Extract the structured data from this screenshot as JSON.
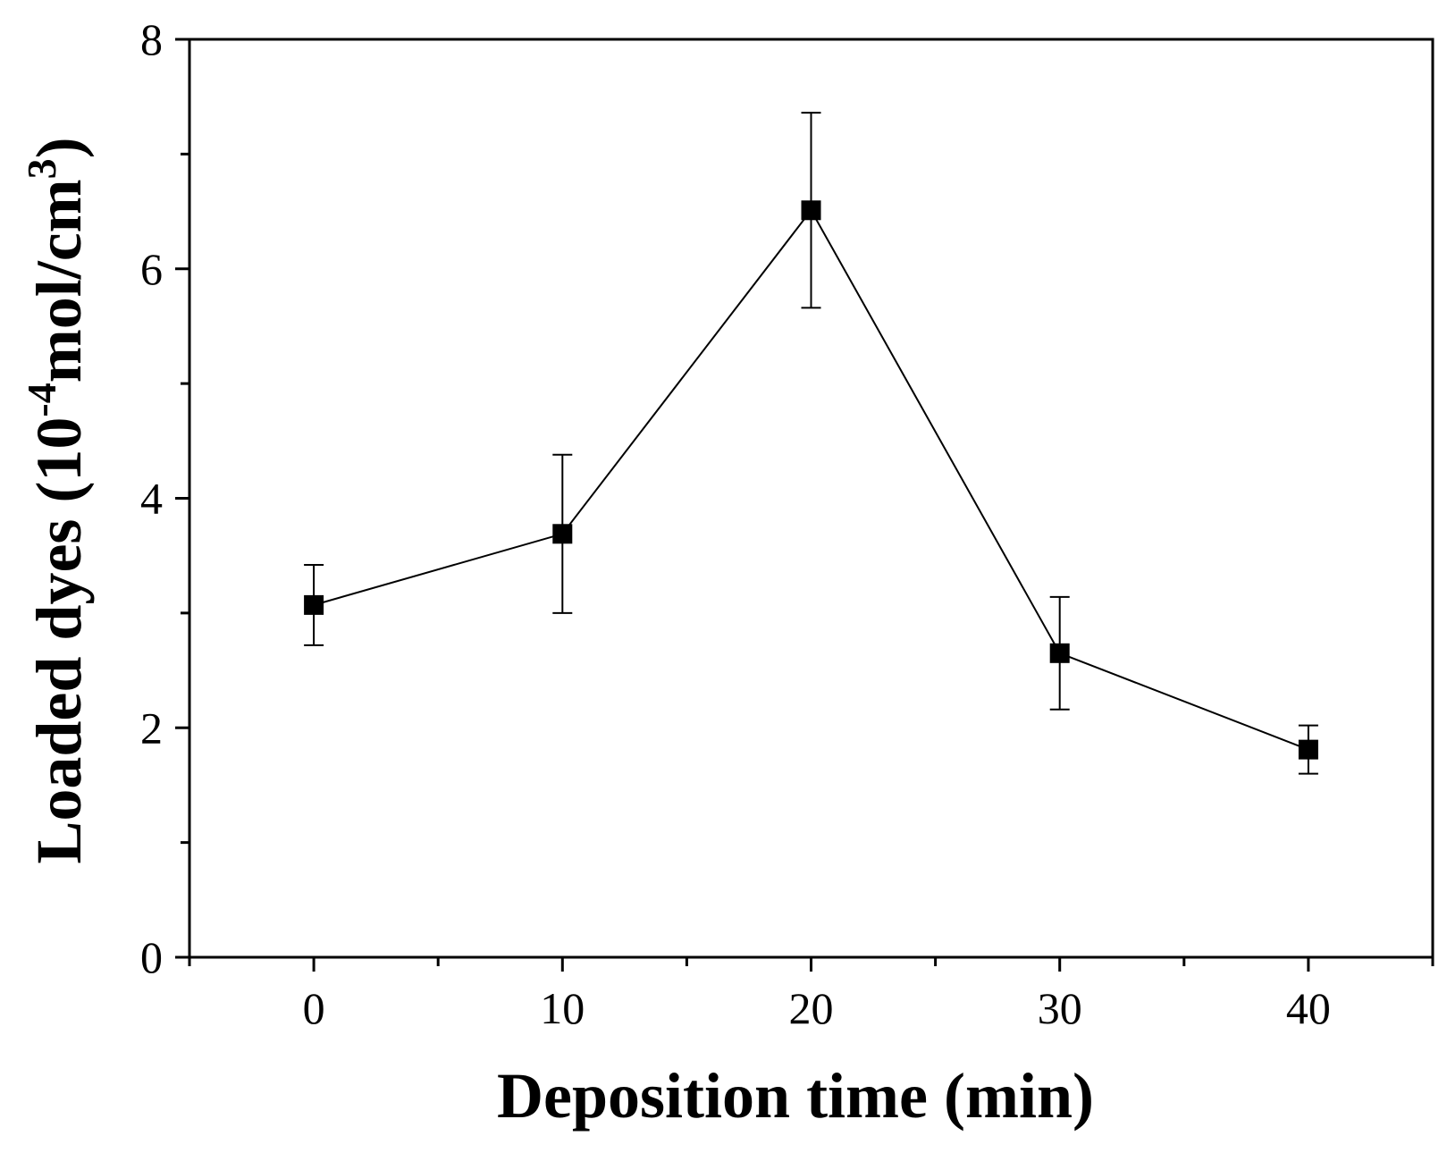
{
  "chart_data": {
    "type": "line",
    "title": "",
    "xlabel": "Deposition time (min)",
    "ylabel": {
      "prefix": "Loaded dyes (10",
      "exponent": "-4",
      "middle": "mol/cm",
      "power": "3",
      "suffix": ")"
    },
    "xlim": [
      -5,
      45
    ],
    "ylim": [
      0,
      8
    ],
    "xticks": [
      "0",
      "10",
      "20",
      "30",
      "40"
    ],
    "yticks": [
      "0",
      "2",
      "4",
      "6",
      "8"
    ],
    "grid": false,
    "legend": "none",
    "marker": "square",
    "color": "#000000",
    "series": [
      {
        "x": [
          0,
          10,
          20,
          30,
          40
        ],
        "values": [
          3.07,
          3.69,
          6.51,
          2.65,
          1.81
        ],
        "error": [
          0.35,
          0.69,
          0.85,
          0.49,
          0.21
        ]
      }
    ]
  }
}
